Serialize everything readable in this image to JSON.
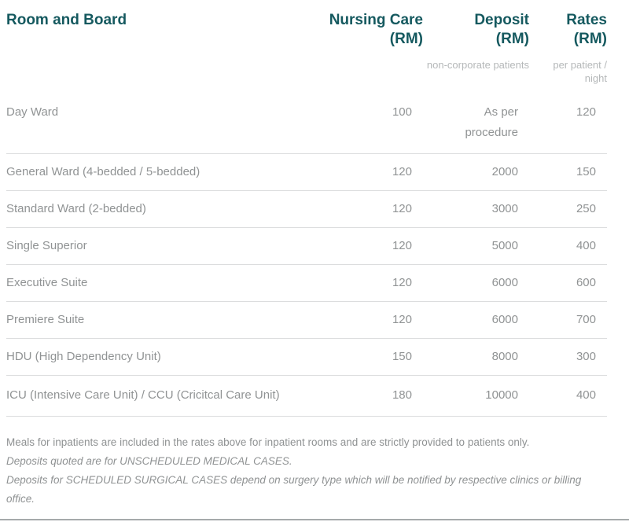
{
  "table": {
    "headers": {
      "room": "Room and Board",
      "nursing": "Nursing Care\n(RM)",
      "deposit": "Deposit\n(RM)",
      "rates": "Rates\n(RM)"
    },
    "subheaders": {
      "deposit": "non-corporate patients",
      "rates": "per patient / night"
    },
    "rows": [
      {
        "room": "Day Ward",
        "nursing": "100",
        "deposit": "As per\nprocedure",
        "rates": "120"
      },
      {
        "room": "General Ward (4-bedded / 5-bedded)",
        "nursing": "120",
        "deposit": "2000",
        "rates": "150"
      },
      {
        "room": "Standard Ward (2-bedded)",
        "nursing": "120",
        "deposit": "3000",
        "rates": "250"
      },
      {
        "room": "Single Superior",
        "nursing": "120",
        "deposit": "5000",
        "rates": "400"
      },
      {
        "room": "Executive Suite",
        "nursing": "120",
        "deposit": "6000",
        "rates": "600"
      },
      {
        "room": "Premiere Suite",
        "nursing": "120",
        "deposit": "6000",
        "rates": "700"
      },
      {
        "room": "HDU (High Dependency Unit)",
        "nursing": "150",
        "deposit": "8000",
        "rates": "300"
      },
      {
        "room": "ICU (Intensive Care Unit) / CCU (Cricitcal Care Unit)",
        "nursing": "180",
        "deposit": "10000",
        "rates": "400"
      }
    ]
  },
  "notes": [
    "Meals for inpatients are included in the rates above for inpatient rooms and are strictly provided to patients only.",
    "Deposits quoted are for UNSCHEDULED MEDICAL CASES.",
    "Deposits for SCHEDULED SURGICAL CASES depend on surgery type which will be notified by respective clinics or billing office."
  ],
  "colors": {
    "header_teal": "#15595f",
    "body_gray": "#909394",
    "subheader_gray": "#b5b8b9",
    "divider_gray": "#dcddde",
    "scrollbar_gray": "#a6aaab"
  }
}
